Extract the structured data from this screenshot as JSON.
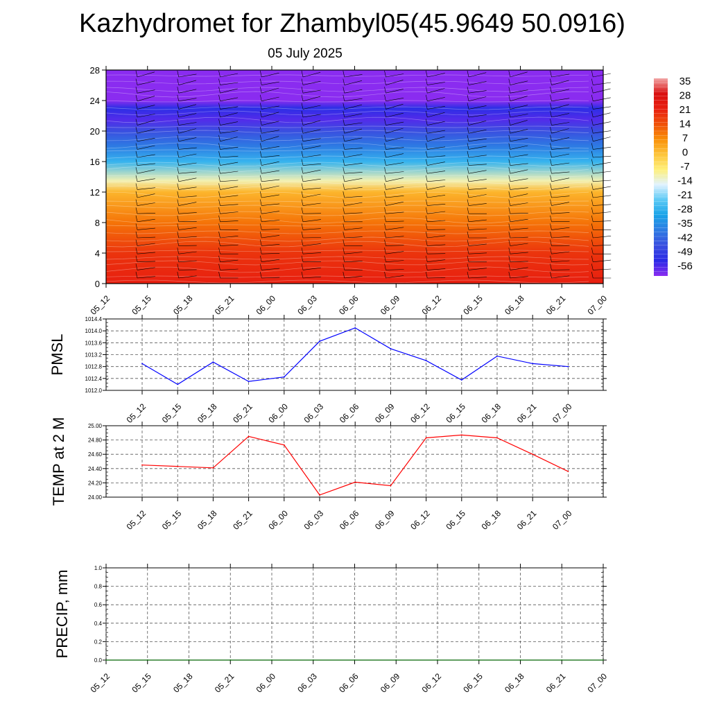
{
  "page": {
    "title": "Kazhydromet for Zhambyl05(45.9649 50.0916)",
    "subtitle": "05 July 2025"
  },
  "chart_data": [
    {
      "type": "heatmap",
      "name": "temperature-cross-section",
      "title": "",
      "xlabel": "",
      "ylabel": "",
      "x_tick_labels": [
        "05_12",
        "05_15",
        "05_18",
        "05_21",
        "06_00",
        "06_03",
        "06_06",
        "06_09",
        "06_12",
        "06_15",
        "06_18",
        "06_21",
        "07_00"
      ],
      "y_tick_labels": [
        "0",
        "4",
        "8",
        "12",
        "16",
        "20",
        "24",
        "28"
      ],
      "ylim": [
        0,
        28
      ],
      "colorbar_labels": [
        "35",
        "28",
        "21",
        "14",
        "7",
        "0",
        "-7",
        "-14",
        "-21",
        "-28",
        "-35",
        "-42",
        "-49",
        "-56"
      ],
      "color_levels": [
        {
          "value": 35,
          "color": "#f2a6a6"
        },
        {
          "value": 28,
          "color": "#d91010"
        },
        {
          "value": 21,
          "color": "#e81f10"
        },
        {
          "value": 14,
          "color": "#f05008"
        },
        {
          "value": 7,
          "color": "#f98f08"
        },
        {
          "value": 0,
          "color": "#fdc43a"
        },
        {
          "value": -7,
          "color": "#fff07a"
        },
        {
          "value": -14,
          "color": "#e0f2ff"
        },
        {
          "value": -21,
          "color": "#5bc9f5"
        },
        {
          "value": -28,
          "color": "#1aa3e8"
        },
        {
          "value": -35,
          "color": "#2d7be3"
        },
        {
          "value": -42,
          "color": "#3a4fe0"
        },
        {
          "value": -49,
          "color": "#2a2ae6"
        },
        {
          "value": -56,
          "color": "#8a2cf0"
        }
      ],
      "vertical_profile": [
        {
          "level": 0,
          "value": 21
        },
        {
          "level": 4,
          "value": 18
        },
        {
          "level": 8,
          "value": 10
        },
        {
          "level": 12,
          "value": 2
        },
        {
          "level": 13.5,
          "value": -10
        },
        {
          "level": 16,
          "value": -25
        },
        {
          "level": 18,
          "value": -35
        },
        {
          "level": 20,
          "value": -42
        },
        {
          "level": 21.5,
          "value": -52
        },
        {
          "level": 23,
          "value": -48
        },
        {
          "level": 24,
          "value": -58
        },
        {
          "level": 28,
          "value": -58
        }
      ],
      "wind_barbs": true
    },
    {
      "type": "line",
      "name": "pmsl",
      "ylabel": "PMSL",
      "categories": [
        "05_12",
        "05_15",
        "05_18",
        "05_21",
        "06_00",
        "06_03",
        "06_06",
        "06_09",
        "06_12",
        "06_15",
        "06_18",
        "06_21",
        "07_00"
      ],
      "series": [
        {
          "values": [
            1012.9,
            1012.2,
            1012.95,
            1012.3,
            1012.45,
            1013.65,
            1014.1,
            1013.4,
            1013.0,
            1012.35,
            1013.15,
            1012.9,
            1012.8
          ],
          "color": "#0000ff"
        }
      ],
      "ylim": [
        1012.0,
        1014.4
      ],
      "y_tick_labels": [
        "1012.0",
        "1012.4",
        "1012.8",
        "1013.2",
        "1013.6",
        "1014.0",
        "1014.4"
      ],
      "grid": true
    },
    {
      "type": "line",
      "name": "temp-2m",
      "ylabel": "TEMP at 2 M",
      "categories": [
        "05_12",
        "05_15",
        "05_18",
        "05_21",
        "06_00",
        "06_03",
        "06_06",
        "06_09",
        "06_12",
        "06_15",
        "06_18",
        "06_21",
        "07_00"
      ],
      "series": [
        {
          "values": [
            24.45,
            24.43,
            24.41,
            24.85,
            24.73,
            24.03,
            24.21,
            24.16,
            24.83,
            24.87,
            24.83,
            24.6,
            24.36
          ],
          "color": "#ff0000"
        }
      ],
      "ylim": [
        24.0,
        25.0
      ],
      "y_tick_labels": [
        "24.00",
        "24.20",
        "24.40",
        "24.60",
        "24.80",
        "25.00"
      ],
      "grid": true
    },
    {
      "type": "line",
      "name": "precip",
      "ylabel": "PRECIP, mm",
      "x_tick_labels": [
        "05_12",
        "05_15",
        "05_18",
        "05_21",
        "06_00",
        "06_03",
        "06_06",
        "06_09",
        "06_12",
        "06_15",
        "06_18",
        "06_21",
        "07_00"
      ],
      "series": [
        {
          "values": [
            0,
            0,
            0,
            0,
            0,
            0,
            0,
            0,
            0,
            0,
            0,
            0,
            0
          ],
          "color": "#006400"
        }
      ],
      "ylim": [
        0.0,
        1.0
      ],
      "y_tick_labels": [
        "0.0",
        "0.2",
        "0.4",
        "0.6",
        "0.8",
        "1.0"
      ],
      "grid": true
    }
  ]
}
